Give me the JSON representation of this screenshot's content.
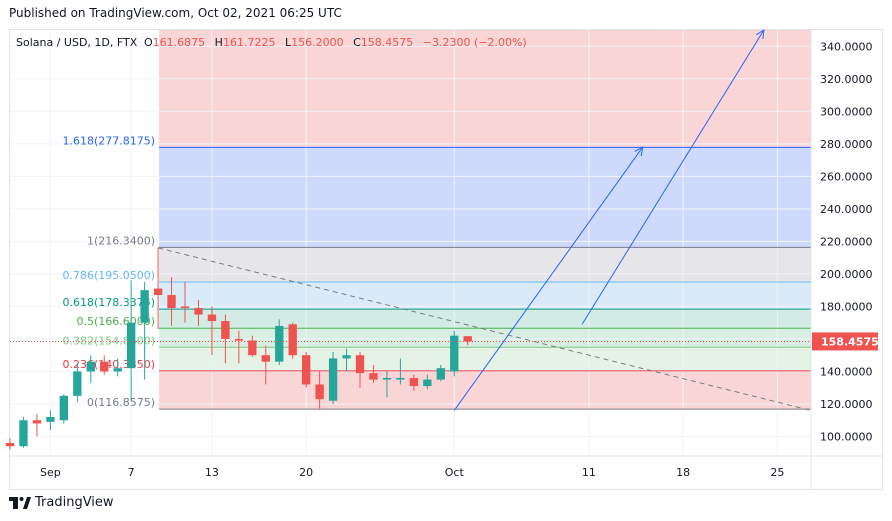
{
  "published_text": "Published on TradingView.com, Oct 02, 2021 06:25 UTC",
  "logo_text": "TradingView",
  "chart_data": {
    "type": "candlestick",
    "symbol_info": "Solana / USD, 1D, FTX",
    "ohlc_open_label": "O",
    "ohlc_open": "161.6875",
    "ohlc_high_label": "H",
    "ohlc_high": "161.7225",
    "ohlc_low_label": "L",
    "ohlc_low": "156.2000",
    "ohlc_close_label": "C",
    "ohlc_close": "158.4575",
    "ohlc_change": "−3.2300 (−2.00%)",
    "last_price_label": "158.4575",
    "last_price": 158.4575,
    "ylim": [
      88,
      350
    ],
    "y_ticks": [
      100,
      120,
      140,
      160,
      180,
      200,
      220,
      240,
      260,
      280,
      300,
      320,
      340
    ],
    "y_tick_labels": [
      "100.0000",
      "120.0000",
      "140.0000",
      "160.0000",
      "180.0000",
      "200.0000",
      "220.0000",
      "240.0000",
      "260.0000",
      "280.0000",
      "300.0000",
      "320.0000",
      "340.0000"
    ],
    "x_axis_labels": [
      {
        "label": "Sep",
        "day": 0
      },
      {
        "label": "7",
        "day": 6
      },
      {
        "label": "13",
        "day": 12
      },
      {
        "label": "20",
        "day": 19
      },
      {
        "label": "Oct",
        "day": 30
      },
      {
        "label": "11",
        "day": 40
      },
      {
        "label": "18",
        "day": 47
      },
      {
        "label": "25",
        "day": 54
      }
    ],
    "x_range_days": [
      -3,
      56.5
    ],
    "candles": [
      {
        "day": -3,
        "o": 96,
        "h": 99,
        "l": 92,
        "c": 94
      },
      {
        "day": -2,
        "o": 94,
        "h": 112,
        "l": 93,
        "c": 110
      },
      {
        "day": -1,
        "o": 110,
        "h": 114,
        "l": 100,
        "c": 108
      },
      {
        "day": 0,
        "o": 109,
        "h": 116,
        "l": 104,
        "c": 112
      },
      {
        "day": 1,
        "o": 110,
        "h": 126,
        "l": 108,
        "c": 125
      },
      {
        "day": 2,
        "o": 125,
        "h": 145,
        "l": 121,
        "c": 140
      },
      {
        "day": 3,
        "o": 140,
        "h": 150,
        "l": 133,
        "c": 146
      },
      {
        "day": 4,
        "o": 146,
        "h": 150,
        "l": 138,
        "c": 140
      },
      {
        "day": 5,
        "o": 140,
        "h": 148,
        "l": 137,
        "c": 142
      },
      {
        "day": 6,
        "o": 142,
        "h": 196,
        "l": 122,
        "c": 170
      },
      {
        "day": 7,
        "o": 170,
        "h": 195,
        "l": 135,
        "c": 190
      },
      {
        "day": 8,
        "o": 191,
        "h": 216.34,
        "l": 166,
        "c": 187
      },
      {
        "day": 9,
        "o": 187,
        "h": 198,
        "l": 168,
        "c": 179
      },
      {
        "day": 10,
        "o": 180,
        "h": 195,
        "l": 170,
        "c": 179
      },
      {
        "day": 11,
        "o": 179,
        "h": 184,
        "l": 168,
        "c": 175
      },
      {
        "day": 12,
        "o": 175,
        "h": 180,
        "l": 150,
        "c": 171
      },
      {
        "day": 13,
        "o": 171,
        "h": 175,
        "l": 145,
        "c": 160
      },
      {
        "day": 14,
        "o": 160,
        "h": 165,
        "l": 145,
        "c": 159
      },
      {
        "day": 15,
        "o": 159,
        "h": 162,
        "l": 149,
        "c": 150
      },
      {
        "day": 16,
        "o": 150,
        "h": 156,
        "l": 132,
        "c": 146
      },
      {
        "day": 17,
        "o": 146,
        "h": 172,
        "l": 144,
        "c": 168
      },
      {
        "day": 18,
        "o": 169,
        "h": 170,
        "l": 148,
        "c": 150
      },
      {
        "day": 19,
        "o": 150,
        "h": 152,
        "l": 130,
        "c": 132
      },
      {
        "day": 20,
        "o": 132,
        "h": 140,
        "l": 116.86,
        "c": 123
      },
      {
        "day": 21,
        "o": 122,
        "h": 152,
        "l": 120,
        "c": 148
      },
      {
        "day": 22,
        "o": 148,
        "h": 154,
        "l": 140,
        "c": 150
      },
      {
        "day": 23,
        "o": 150,
        "h": 152,
        "l": 130,
        "c": 139
      },
      {
        "day": 24,
        "o": 139,
        "h": 144,
        "l": 133,
        "c": 135
      },
      {
        "day": 25,
        "o": 135,
        "h": 140,
        "l": 124,
        "c": 136
      },
      {
        "day": 26,
        "o": 135,
        "h": 148,
        "l": 132,
        "c": 136
      },
      {
        "day": 27,
        "o": 136,
        "h": 138,
        "l": 128,
        "c": 131
      },
      {
        "day": 28,
        "o": 131,
        "h": 138,
        "l": 129,
        "c": 135
      },
      {
        "day": 29,
        "o": 135,
        "h": 144,
        "l": 134,
        "c": 142
      },
      {
        "day": 30,
        "o": 140,
        "h": 165,
        "l": 137,
        "c": 162
      },
      {
        "day": 31,
        "o": 161.6875,
        "h": 161.7225,
        "l": 156.2,
        "c": 158.4575
      }
    ],
    "fib_levels": [
      {
        "label": "1.618(277.8175)",
        "value": 277.8175,
        "color": "#2962ff"
      },
      {
        "label": "1(216.3400)",
        "value": 216.34,
        "color": "#787b86"
      },
      {
        "label": "0.786(195.0500)",
        "value": 195.05,
        "color": "#64b5f6"
      },
      {
        "label": "0.618(178.3375)",
        "value": 178.3375,
        "color": "#089981"
      },
      {
        "label": "0.5(166.6000)",
        "value": 166.6,
        "color": "#4caf50"
      },
      {
        "label": "0.382(154.8600)",
        "value": 154.86,
        "color": "#81c784"
      },
      {
        "label": "0.236(140.3350)",
        "value": 140.335,
        "color": "#f23645"
      },
      {
        "label": "0(116.8575)",
        "value": 116.8575,
        "color": "#787b86"
      }
    ],
    "colors": {
      "up": "#26a69a",
      "down": "#ef5350",
      "zone_top": "#f8d1d0",
      "zone_1618": "#c8d6fb",
      "zone_1": "#e3e3e5",
      "zone_786": "#d5e9f8",
      "zone_618": "#cde9e2",
      "zone_5": "#d5ecdf",
      "zone_382": "#e2f2e3",
      "zone_bottom": "#f8d1d0",
      "arrow": "#2962ff",
      "trend": "#787b86",
      "price_badge": "#ef5350"
    },
    "arrows": [
      {
        "from": {
          "day": 30,
          "price": 116
        },
        "to": {
          "day": 44,
          "price": 278
        }
      },
      {
        "from": {
          "day": 39.5,
          "price": 169
        },
        "to": {
          "day": 53,
          "price": 350
        }
      }
    ],
    "trendline": {
      "from": {
        "day": 8,
        "price": 216
      },
      "to": {
        "day": 56.5,
        "price": 116
      }
    }
  }
}
